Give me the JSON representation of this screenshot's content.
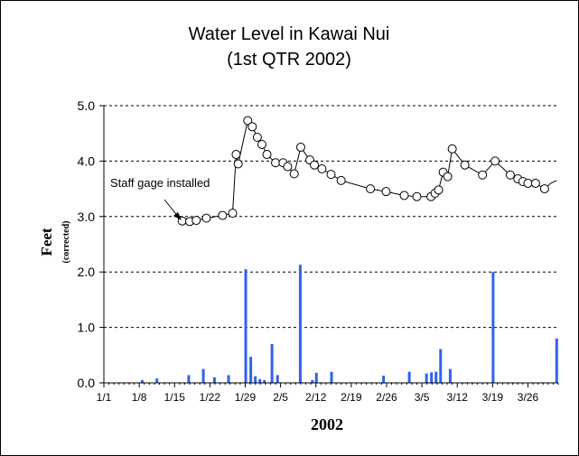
{
  "chart_data": {
    "type": "line",
    "title": "Water Level in Kawai Nui",
    "subtitle": "(1st QTR 2002)",
    "ylabel": "Feet",
    "ylabel_sub": "(corrected)",
    "xlabel": "2002",
    "ylim": [
      0,
      5
    ],
    "y_ticks": [
      "0.0",
      "1.0",
      "2.0",
      "3.0",
      "4.0",
      "5.0"
    ],
    "y_tick_values": [
      0,
      1,
      2,
      3,
      4,
      5
    ],
    "x_ticks": [
      "1/1",
      "1/8",
      "1/15",
      "1/22",
      "1/29",
      "2/5",
      "2/12",
      "2/19",
      "2/26",
      "3/5",
      "3/12",
      "3/19",
      "3/26"
    ],
    "x_tick_days": [
      0,
      7,
      14,
      21,
      28,
      35,
      42,
      49,
      56,
      63,
      70,
      77,
      84
    ],
    "x_range_days": [
      0,
      90
    ],
    "grid": "horizontal dashed",
    "legend": "none",
    "annotation": "Staff gage installed",
    "colors": {
      "level_line": "#000000",
      "marker_fill": "#ffffff",
      "rainfall_bar": "#2f63f0"
    },
    "series": [
      {
        "kind": "line-markers",
        "points": [
          [
            15.5,
            2.92
          ],
          [
            17.0,
            2.91
          ],
          [
            18.3,
            2.93
          ],
          [
            20.3,
            2.97
          ],
          [
            23.5,
            3.02
          ],
          [
            25.5,
            3.06
          ],
          [
            26.2,
            4.12
          ],
          [
            26.6,
            3.95
          ],
          [
            28.5,
            4.73
          ],
          [
            29.4,
            4.62
          ],
          [
            30.4,
            4.43
          ],
          [
            31.3,
            4.3
          ],
          [
            32.3,
            4.12
          ],
          [
            34.0,
            3.97
          ],
          [
            35.5,
            3.97
          ],
          [
            36.4,
            3.9
          ],
          [
            37.7,
            3.77
          ],
          [
            39.0,
            4.25
          ],
          [
            40.8,
            4.02
          ],
          [
            41.7,
            3.93
          ],
          [
            43.2,
            3.86
          ],
          [
            45.0,
            3.76
          ],
          [
            47.0,
            3.65
          ],
          [
            52.8,
            3.5
          ],
          [
            55.9,
            3.45
          ],
          [
            59.5,
            3.38
          ],
          [
            62.0,
            3.36
          ],
          [
            64.8,
            3.36
          ],
          [
            65.6,
            3.42
          ],
          [
            66.3,
            3.48
          ],
          [
            67.2,
            3.8
          ],
          [
            68.1,
            3.72
          ],
          [
            69.0,
            4.22
          ],
          [
            71.5,
            3.93
          ],
          [
            75.0,
            3.75
          ],
          [
            77.5,
            4.0
          ],
          [
            80.5,
            3.75
          ],
          [
            82.0,
            3.68
          ],
          [
            83.0,
            3.63
          ],
          [
            84.0,
            3.6
          ],
          [
            85.5,
            3.6
          ],
          [
            87.3,
            3.5
          ]
        ],
        "unmarked_tail": [
          [
            88.5,
            3.6
          ],
          [
            89.7,
            3.65
          ]
        ]
      },
      {
        "kind": "bars",
        "points": [
          [
            7.6,
            0.05
          ],
          [
            10.5,
            0.08
          ],
          [
            16.8,
            0.14
          ],
          [
            19.7,
            0.25
          ],
          [
            21.9,
            0.1
          ],
          [
            24.7,
            0.14
          ],
          [
            28.1,
            2.05
          ],
          [
            29.1,
            0.47
          ],
          [
            30.0,
            0.12
          ],
          [
            30.9,
            0.07
          ],
          [
            31.8,
            0.05
          ],
          [
            33.3,
            0.7
          ],
          [
            34.4,
            0.14
          ],
          [
            38.9,
            2.13
          ],
          [
            41.3,
            0.05
          ],
          [
            42.1,
            0.18
          ],
          [
            45.1,
            0.2
          ],
          [
            55.4,
            0.13
          ],
          [
            60.5,
            0.2
          ],
          [
            63.9,
            0.17
          ],
          [
            64.9,
            0.19
          ],
          [
            65.8,
            0.2
          ],
          [
            66.7,
            0.61
          ],
          [
            68.6,
            0.25
          ],
          [
            77.1,
            2.0
          ],
          [
            89.7,
            0.8
          ]
        ]
      }
    ]
  }
}
